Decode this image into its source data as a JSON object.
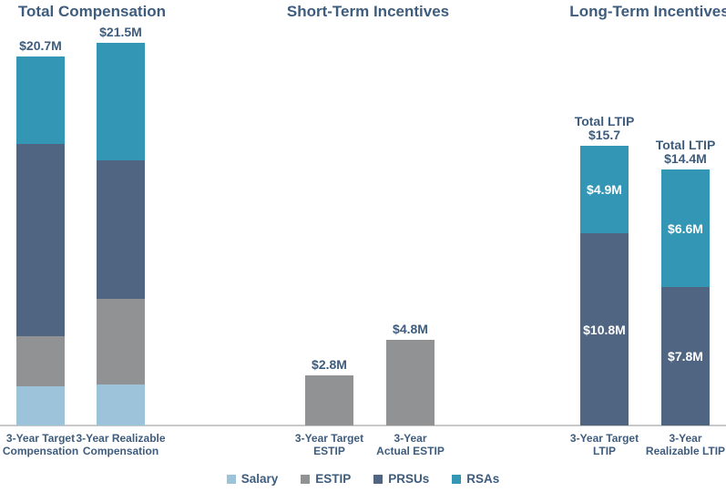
{
  "colors": {
    "salary": "#9cc3d9",
    "estip": "#919294",
    "prsus": "#4f6582",
    "rsas": "#3496b5",
    "label_text": "#3e5c7d",
    "inside_label_text": "#ffffff",
    "axis_line": "#c9c9c9",
    "background": "#ffffff"
  },
  "legend": {
    "items": [
      {
        "key": "salary",
        "label": "Salary"
      },
      {
        "key": "estip",
        "label": "ESTIP"
      },
      {
        "key": "prsus",
        "label": "PRSUs"
      },
      {
        "key": "rsas",
        "label": "RSAs"
      }
    ]
  },
  "chart_data": {
    "type": "bar",
    "subtype": "stacked-bar-group-of-three",
    "unit": "USD millions",
    "ylim": [
      0,
      24
    ],
    "grid": false,
    "legend_position": "bottom-center",
    "charts": [
      {
        "title": "Total Compensation",
        "bars": [
          {
            "category": "3-Year Target Compensation",
            "category_lines": [
              "3-Year Target",
              "Compensation"
            ],
            "total_value": 20.7,
            "total_label_lines": [
              "$20.7M"
            ],
            "segments": [
              {
                "key": "salary",
                "value": 2.2
              },
              {
                "key": "estip",
                "value": 2.8
              },
              {
                "key": "prsus",
                "value": 10.8
              },
              {
                "key": "rsas",
                "value": 4.9
              }
            ]
          },
          {
            "category": "3-Year Realizable Compensation",
            "category_lines": [
              "3-Year Realizable",
              "Compensation"
            ],
            "total_value": 21.5,
            "total_label_lines": [
              "$21.5M"
            ],
            "segments": [
              {
                "key": "salary",
                "value": 2.3
              },
              {
                "key": "estip",
                "value": 4.8
              },
              {
                "key": "prsus",
                "value": 7.8
              },
              {
                "key": "rsas",
                "value": 6.6
              }
            ]
          }
        ]
      },
      {
        "title": "Short-Term Incentives",
        "bars": [
          {
            "category": "3-Year Target ESTIP",
            "category_lines": [
              "3-Year Target",
              "ESTIP"
            ],
            "total_value": 2.8,
            "total_label_lines": [
              "$2.8M"
            ],
            "segments": [
              {
                "key": "estip",
                "value": 2.8
              }
            ]
          },
          {
            "category": "3-Year Actual ESTIP",
            "category_lines": [
              "3-Year",
              "Actual ESTIP"
            ],
            "total_value": 4.8,
            "total_label_lines": [
              "$4.8M"
            ],
            "segments": [
              {
                "key": "estip",
                "value": 4.8
              }
            ]
          }
        ]
      },
      {
        "title": "Long-Term Incentives",
        "bars": [
          {
            "category": "3-Year Target LTIP",
            "category_lines": [
              "3-Year Target",
              "LTIP"
            ],
            "total_value": 15.7,
            "total_label_lines": [
              "Total LTIP",
              "$15.7"
            ],
            "segments": [
              {
                "key": "prsus",
                "value": 10.8,
                "label": "$10.8M"
              },
              {
                "key": "rsas",
                "value": 4.9,
                "label": "$4.9M"
              }
            ]
          },
          {
            "category": "3-Year Realizable LTIP",
            "category_lines": [
              "3-Year",
              "Realizable LTIP"
            ],
            "total_value": 14.4,
            "total_label_lines": [
              "Total LTIP",
              "$14.4M"
            ],
            "segments": [
              {
                "key": "prsus",
                "value": 7.8,
                "label": "$7.8M"
              },
              {
                "key": "rsas",
                "value": 6.6,
                "label": "$6.6M"
              }
            ]
          }
        ]
      }
    ]
  }
}
